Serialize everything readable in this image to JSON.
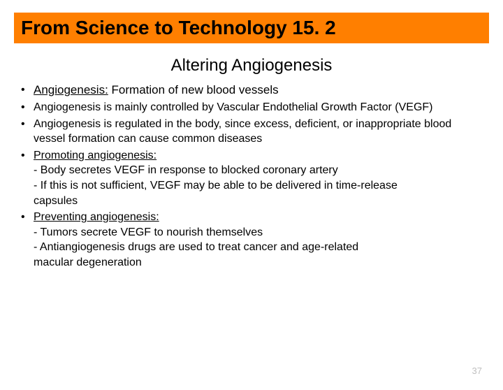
{
  "banner": {
    "title": "From Science to Technology 15. 2",
    "bg_color": "#ff7f00",
    "text_color": "#000000"
  },
  "subtitle": "Altering Angiogenesis",
  "bullets": [
    {
      "term": "Angiogenesis:",
      "rest": " Formation of new blood vessels",
      "term_underline": true,
      "first": true
    },
    {
      "text": "Angiogenesis is mainly controlled by Vascular Endothelial Growth Factor (VEGF)"
    },
    {
      "text": "Angiogenesis is regulated in the body, since excess, deficient, or inappropriate blood vessel formation can cause common diseases"
    },
    {
      "term": "Promoting angiogenesis:",
      "term_underline": true,
      "sublines": [
        "- Body secretes VEGF in response to blocked coronary artery",
        "- If this is not sufficient, VEGF may be able to be delivered in time-release",
        "  capsules"
      ]
    },
    {
      "term": "Preventing angiogenesis:",
      "term_underline": true,
      "sublines": [
        "- Tumors secrete VEGF to nourish themselves",
        "- Antiangiogenesis drugs are used to treat cancer and age-related",
        "  macular degeneration"
      ]
    }
  ],
  "page_number": "37"
}
